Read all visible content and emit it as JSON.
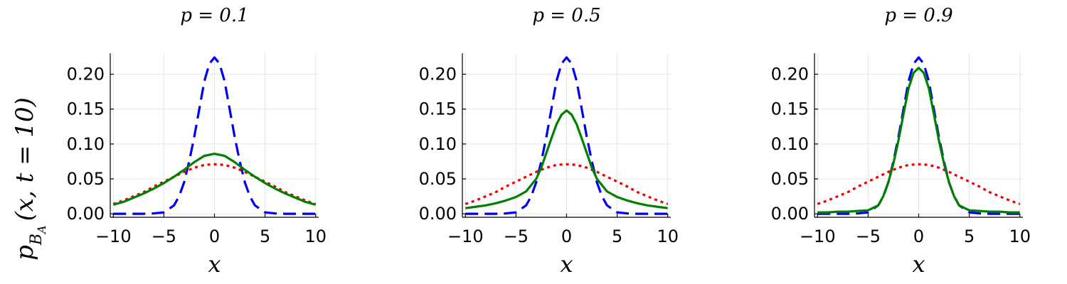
{
  "chart_data": [
    {
      "type": "line",
      "title": "p = 0.1",
      "xlabel": "x",
      "ylabel": "",
      "xlim": [
        -10.3,
        10.3
      ],
      "ylim": [
        -0.005,
        0.23
      ],
      "xticks": [
        -10,
        -5,
        0,
        5,
        10
      ],
      "yticks": [
        0.0,
        0.05,
        0.1,
        0.15,
        0.2
      ],
      "grid": true,
      "legend": "none",
      "series": [
        {
          "color": "#0000ee",
          "dash": "dashed",
          "x": [
            -10,
            -9,
            -8,
            -7,
            -6,
            -5,
            -4,
            -3.5,
            -3,
            -2.5,
            -2,
            -1.5,
            -1,
            -0.5,
            0,
            0.5,
            1,
            1.5,
            2,
            2.5,
            3,
            3.5,
            4,
            5,
            6,
            7,
            8,
            9,
            10
          ],
          "y": [
            0,
            0,
            0,
            0,
            0.0005,
            0.002,
            0.012,
            0.025,
            0.045,
            0.075,
            0.11,
            0.15,
            0.19,
            0.215,
            0.224,
            0.215,
            0.19,
            0.15,
            0.11,
            0.075,
            0.045,
            0.025,
            0.012,
            0.002,
            0.0005,
            0,
            0,
            0,
            0
          ]
        },
        {
          "color": "#ee0000",
          "dash": "dotted",
          "x": [
            -10,
            -9,
            -8,
            -7,
            -6,
            -5,
            -4,
            -3,
            -2,
            -1,
            0,
            1,
            2,
            3,
            4,
            5,
            6,
            7,
            8,
            9,
            10
          ],
          "y": [
            0.014,
            0.019,
            0.025,
            0.031,
            0.039,
            0.046,
            0.053,
            0.06,
            0.066,
            0.07,
            0.071,
            0.07,
            0.066,
            0.06,
            0.053,
            0.046,
            0.039,
            0.031,
            0.025,
            0.019,
            0.014
          ]
        },
        {
          "color": "#008000",
          "dash": "solid",
          "x": [
            -10,
            -9,
            -8,
            -7,
            -6,
            -5,
            -4,
            -3,
            -2,
            -1,
            0,
            1,
            2,
            3,
            4,
            5,
            6,
            7,
            8,
            9,
            10
          ],
          "y": [
            0.013,
            0.017,
            0.023,
            0.029,
            0.036,
            0.044,
            0.053,
            0.063,
            0.074,
            0.083,
            0.086,
            0.083,
            0.074,
            0.063,
            0.053,
            0.044,
            0.036,
            0.029,
            0.023,
            0.017,
            0.013
          ]
        }
      ]
    },
    {
      "type": "line",
      "title": "p = 0.5",
      "xlabel": "x",
      "ylabel": "",
      "xlim": [
        -10.3,
        10.3
      ],
      "ylim": [
        -0.005,
        0.23
      ],
      "xticks": [
        -10,
        -5,
        0,
        5,
        10
      ],
      "yticks": [
        0.0,
        0.05,
        0.1,
        0.15,
        0.2
      ],
      "grid": true,
      "legend": "none",
      "series": [
        {
          "color": "#0000ee",
          "dash": "dashed",
          "x": [
            -10,
            -9,
            -8,
            -7,
            -6,
            -5,
            -4,
            -3.5,
            -3,
            -2.5,
            -2,
            -1.5,
            -1,
            -0.5,
            0,
            0.5,
            1,
            1.5,
            2,
            2.5,
            3,
            3.5,
            4,
            5,
            6,
            7,
            8,
            9,
            10
          ],
          "y": [
            0,
            0,
            0,
            0,
            0.0005,
            0.002,
            0.012,
            0.025,
            0.045,
            0.075,
            0.11,
            0.15,
            0.19,
            0.215,
            0.224,
            0.215,
            0.19,
            0.15,
            0.11,
            0.075,
            0.045,
            0.025,
            0.012,
            0.002,
            0.0005,
            0,
            0,
            0,
            0
          ]
        },
        {
          "color": "#ee0000",
          "dash": "dotted",
          "x": [
            -10,
            -9,
            -8,
            -7,
            -6,
            -5,
            -4,
            -3,
            -2,
            -1,
            0,
            1,
            2,
            3,
            4,
            5,
            6,
            7,
            8,
            9,
            10
          ],
          "y": [
            0.014,
            0.019,
            0.025,
            0.031,
            0.039,
            0.046,
            0.053,
            0.06,
            0.066,
            0.07,
            0.071,
            0.07,
            0.066,
            0.06,
            0.053,
            0.046,
            0.039,
            0.031,
            0.025,
            0.019,
            0.014
          ]
        },
        {
          "color": "#008000",
          "dash": "solid",
          "x": [
            -10,
            -9,
            -8,
            -7,
            -6,
            -5,
            -4,
            -3,
            -2.5,
            -2,
            -1.5,
            -1,
            -0.5,
            0,
            0.5,
            1,
            1.5,
            2,
            2.5,
            3,
            4,
            5,
            6,
            7,
            8,
            9,
            10
          ],
          "y": [
            0.008,
            0.01,
            0.012,
            0.015,
            0.019,
            0.024,
            0.032,
            0.05,
            0.066,
            0.087,
            0.108,
            0.128,
            0.142,
            0.148,
            0.142,
            0.128,
            0.108,
            0.087,
            0.066,
            0.05,
            0.032,
            0.024,
            0.019,
            0.015,
            0.012,
            0.01,
            0.008
          ]
        }
      ]
    },
    {
      "type": "line",
      "title": "p = 0.9",
      "xlabel": "x",
      "ylabel": "",
      "xlim": [
        -10.3,
        10.3
      ],
      "ylim": [
        -0.005,
        0.23
      ],
      "xticks": [
        -10,
        -5,
        0,
        5,
        10
      ],
      "yticks": [
        0.0,
        0.05,
        0.1,
        0.15,
        0.2
      ],
      "grid": true,
      "legend": "none",
      "series": [
        {
          "color": "#0000ee",
          "dash": "dashed",
          "x": [
            -10,
            -9,
            -8,
            -7,
            -6,
            -5,
            -4,
            -3.5,
            -3,
            -2.5,
            -2,
            -1.5,
            -1,
            -0.5,
            0,
            0.5,
            1,
            1.5,
            2,
            2.5,
            3,
            3.5,
            4,
            5,
            6,
            7,
            8,
            9,
            10
          ],
          "y": [
            0,
            0,
            0,
            0,
            0.0005,
            0.002,
            0.012,
            0.025,
            0.045,
            0.075,
            0.11,
            0.15,
            0.19,
            0.215,
            0.224,
            0.215,
            0.19,
            0.15,
            0.11,
            0.075,
            0.045,
            0.025,
            0.012,
            0.002,
            0.0005,
            0,
            0,
            0,
            0
          ]
        },
        {
          "color": "#ee0000",
          "dash": "dotted",
          "x": [
            -10,
            -9,
            -8,
            -7,
            -6,
            -5,
            -4,
            -3,
            -2,
            -1,
            0,
            1,
            2,
            3,
            4,
            5,
            6,
            7,
            8,
            9,
            10
          ],
          "y": [
            0.014,
            0.019,
            0.025,
            0.031,
            0.039,
            0.046,
            0.053,
            0.06,
            0.066,
            0.07,
            0.071,
            0.07,
            0.066,
            0.06,
            0.053,
            0.046,
            0.039,
            0.031,
            0.025,
            0.019,
            0.014
          ]
        },
        {
          "color": "#008000",
          "dash": "solid",
          "x": [
            -10,
            -9,
            -8,
            -7,
            -6,
            -5,
            -4,
            -3.5,
            -3,
            -2.5,
            -2,
            -1.5,
            -1,
            -0.5,
            0,
            0.5,
            1,
            1.5,
            2,
            2.5,
            3,
            3.5,
            4,
            5,
            6,
            7,
            8,
            9,
            10
          ],
          "y": [
            0.002,
            0.002,
            0.003,
            0.003,
            0.004,
            0.005,
            0.012,
            0.025,
            0.045,
            0.072,
            0.105,
            0.143,
            0.18,
            0.202,
            0.209,
            0.202,
            0.18,
            0.143,
            0.105,
            0.072,
            0.045,
            0.025,
            0.012,
            0.005,
            0.004,
            0.003,
            0.003,
            0.002,
            0.002
          ]
        }
      ]
    }
  ],
  "shared_ylabel": {
    "main": "p",
    "subscript": "B",
    "subsubscript": "A",
    "args": "(x, t = 10)"
  }
}
